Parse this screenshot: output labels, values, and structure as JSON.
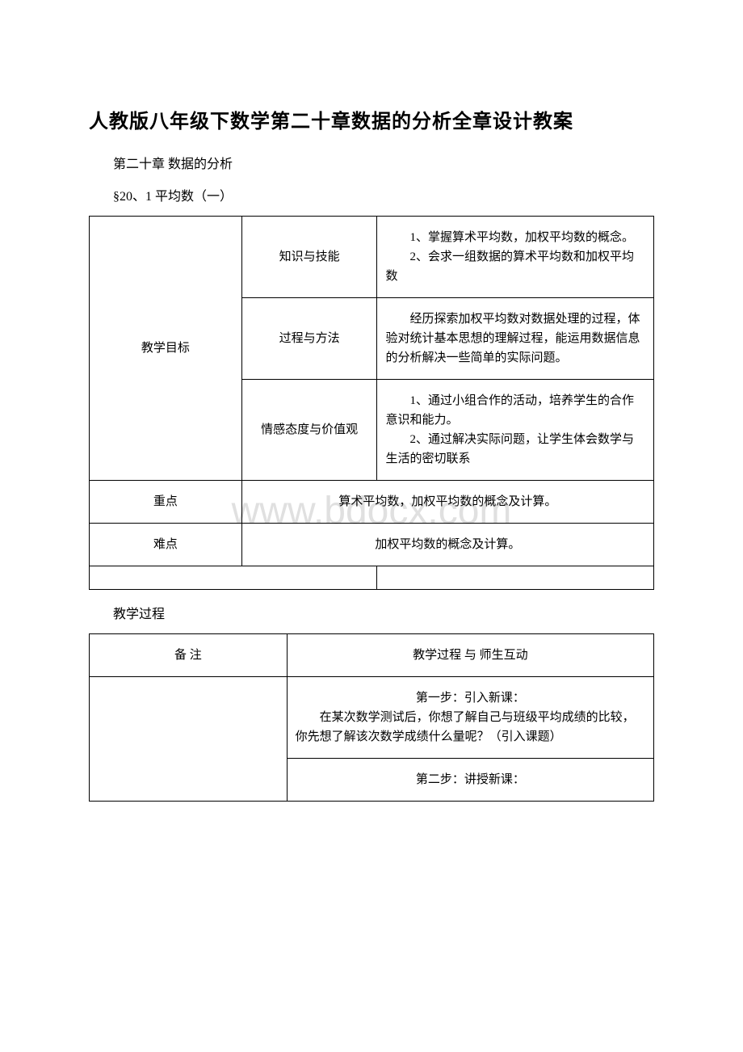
{
  "title": "人教版八年级下数学第二十章数据的分析全章设计教案",
  "subtitle1": "第二十章 数据的分析",
  "subtitle2": "§20、1 平均数（一）",
  "watermark": "www.bdocx.com",
  "table1": {
    "rows": [
      {
        "label": "教学目标",
        "items": [
          {
            "mid": "知识与技能",
            "content_lines": [
              "　　1、掌握算术平均数，加权平均数的概念。",
              "　　2、会求一组数据的算术平均数和加权平均数"
            ]
          },
          {
            "mid": "过程与方法",
            "content_lines": [
              "　　经历探索加权平均数对数据处理的过程，体验对统计基本思想的理解过程，能运用数据信息的分析解决一些简单的实际问题。"
            ]
          },
          {
            "mid": "情感态度与价值观",
            "content_lines": [
              "　　1、通过小组合作的活动，培养学生的合作意识和能力。",
              "　　2、通过解决实际问题，让学生体会数学与生活的密切联系"
            ]
          }
        ]
      },
      {
        "label": "重点",
        "merged_content": "算术平均数，加权平均数的概念及计算。"
      },
      {
        "label": "难点",
        "merged_content": "加权平均数的概念及计算。"
      },
      {
        "label": "",
        "split_empty": true
      }
    ]
  },
  "process_header": "教学过程",
  "table2": {
    "header": {
      "col1": "备 注",
      "col2": "教学过程 与 师生互动"
    },
    "rows": [
      {
        "col1": "",
        "col2_lines": [
          "第一步：引入新课：",
          "　　在某次数学测试后，你想了解自己与班级平均成绩的比较，你先想了解该次数学成绩什么量呢？（引入课题）"
        ]
      },
      {
        "col1": "",
        "col2_lines": [
          "第二步：讲授新课："
        ]
      }
    ]
  }
}
